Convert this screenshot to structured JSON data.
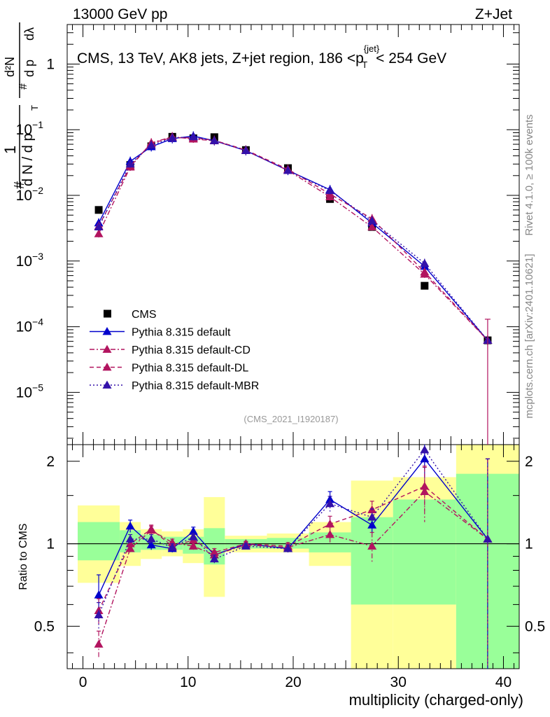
{
  "header": {
    "left": "13000 GeV pp",
    "right": "Z+Jet"
  },
  "side_labels": {
    "rivet": "Rivet 4.1.0, ≥ 100k events",
    "mcplots": "mcplots.cern.ch [arXiv:2401.10621]"
  },
  "chart_data": [
    {
      "type": "line",
      "panel": "main",
      "title": "CMS, 13 TeV, AK8 jets, Z+jet region, 186 <p_T^{jet}< 254 GeV",
      "title_parts": {
        "pre": "CMS, 13 TeV, AK8 jets, Z+jet region, 186 <p",
        "sub": "T",
        "sup": "{jet}",
        "post": "< 254 GeV"
      },
      "ylabel": "1/N dN/dp_T d^2N/dp_T dlambda",
      "ylabel_parts": {
        "hash": "#",
        "one": "1",
        "dn": "d N / d p",
        "T": "T",
        "d2N": "d²N",
        "dp": "d p",
        "dl": "dλ"
      },
      "yscale": "log",
      "ylim": [
        1.6e-06,
        4
      ],
      "yticks": [
        {
          "v": 1e-05,
          "m": "10",
          "e": "−5"
        },
        {
          "v": 0.0001,
          "m": "10",
          "e": "−4"
        },
        {
          "v": 0.001,
          "m": "10",
          "e": "−3"
        },
        {
          "v": 0.01,
          "m": "10",
          "e": "−2"
        },
        {
          "v": 0.1,
          "m": "10",
          "e": "−1"
        },
        {
          "v": 1,
          "m": "1",
          "e": ""
        }
      ],
      "xlim": [
        -1.5,
        41.5
      ],
      "annotation": "(CMS_2021_I1920187)",
      "legend_position": "lower-left",
      "series": [
        {
          "name": "CMS",
          "style": "marker-square",
          "color": "#000000",
          "x": [
            1.5,
            4.5,
            6.5,
            8.5,
            10.5,
            12.5,
            15.5,
            19.5,
            23.5,
            27.5,
            32.5,
            38.5
          ],
          "y": [
            0.006,
            0.029,
            0.056,
            0.078,
            0.074,
            0.077,
            0.049,
            0.026,
            0.0088,
            0.0033,
            0.00042,
            6.2e-05
          ]
        },
        {
          "name": "Pythia 8.315 default",
          "style": "solid",
          "color": "#0000cc",
          "x": [
            1.5,
            4.5,
            6.5,
            8.5,
            10.5,
            12.5,
            15.5,
            19.5,
            23.5,
            27.5,
            32.5,
            38.5
          ],
          "y": [
            0.0038,
            0.033,
            0.055,
            0.073,
            0.08,
            0.068,
            0.048,
            0.024,
            0.0122,
            0.0038,
            0.00083,
            6.2e-05
          ]
        },
        {
          "name": "Pythia 8.315 default-CD",
          "style": "dashdot",
          "color": "#b2145f",
          "x": [
            1.5,
            4.5,
            6.5,
            8.5,
            10.5,
            12.5,
            15.5,
            19.5,
            23.5,
            27.5,
            32.5,
            38.5
          ],
          "y": [
            0.0026,
            0.027,
            0.063,
            0.078,
            0.072,
            0.068,
            0.048,
            0.024,
            0.0095,
            0.0033,
            0.00063,
            6.2e-05
          ]
        },
        {
          "name": "Pythia 8.315 default-DL",
          "style": "dashed",
          "color": "#b2145f",
          "x": [
            1.5,
            4.5,
            6.5,
            8.5,
            10.5,
            12.5,
            15.5,
            19.5,
            23.5,
            27.5,
            32.5,
            38.5
          ],
          "y": [
            0.0034,
            0.028,
            0.062,
            0.076,
            0.075,
            0.069,
            0.049,
            0.025,
            0.0105,
            0.0044,
            0.00068,
            6.2e-05
          ]
        },
        {
          "name": "Pythia 8.315 default-MBR",
          "style": "dotted",
          "color": "#3311aa",
          "x": [
            1.5,
            4.5,
            6.5,
            8.5,
            10.5,
            12.5,
            15.5,
            19.5,
            23.5,
            27.5,
            32.5,
            38.5
          ],
          "y": [
            0.0033,
            0.03,
            0.058,
            0.075,
            0.078,
            0.068,
            0.048,
            0.024,
            0.0118,
            0.0041,
            0.00092,
            6.2e-05
          ]
        }
      ]
    },
    {
      "type": "line",
      "panel": "ratio",
      "ylabel": "Ratio to CMS",
      "xlabel": "multiplicity (charged-only)",
      "xlim": [
        -1.5,
        41.5
      ],
      "xticks": [
        0,
        10,
        20,
        30,
        40
      ],
      "ylim": [
        0.35,
        2.3
      ],
      "yticks": [
        0.5,
        1,
        2
      ],
      "reference_line": 1,
      "bands": {
        "bin_edges": [
          -0.5,
          3.5,
          5.5,
          7.5,
          9.5,
          11.5,
          13.5,
          17.5,
          21.5,
          25.5,
          29.5,
          35.5,
          41.5
        ],
        "inner": [
          [
            0.87,
            1.2
          ],
          [
            0.93,
            1.12
          ],
          [
            0.95,
            1.08
          ],
          [
            0.95,
            1.06
          ],
          [
            0.92,
            1.06
          ],
          [
            0.84,
            1.14
          ],
          [
            0.96,
            1.04
          ],
          [
            0.96,
            1.05
          ],
          [
            0.93,
            1.1
          ],
          [
            0.6,
            1.25
          ],
          [
            0.6,
            1.45
          ],
          [
            0.3,
            1.8
          ]
        ],
        "outer": [
          [
            0.72,
            1.38
          ],
          [
            0.83,
            1.2
          ],
          [
            0.88,
            1.13
          ],
          [
            0.9,
            1.11
          ],
          [
            0.85,
            1.13
          ],
          [
            0.64,
            1.48
          ],
          [
            0.93,
            1.07
          ],
          [
            0.93,
            1.09
          ],
          [
            0.83,
            1.2
          ],
          [
            0.3,
            1.7
          ],
          [
            0.3,
            1.75
          ],
          [
            0.3,
            2.3
          ]
        ]
      },
      "series": [
        {
          "name": "Pythia 8.315 default",
          "style": "solid",
          "color": "#0000cc",
          "x": [
            1.5,
            4.5,
            6.5,
            8.5,
            10.5,
            12.5,
            15.5,
            19.5,
            23.5,
            27.5,
            32.5,
            38.5
          ],
          "y": [
            0.65,
            1.16,
            0.99,
            0.96,
            1.11,
            0.91,
            1.0,
            0.96,
            1.45,
            1.17,
            2.04,
            1.04
          ],
          "err": [
            0.12,
            0.06,
            0.04,
            0.03,
            0.04,
            0.03,
            0.02,
            0.03,
            0.1,
            0.08,
            0.3,
            1.0
          ]
        },
        {
          "name": "Pythia 8.315 default-CD",
          "style": "dashdot",
          "color": "#b2145f",
          "x": [
            1.5,
            4.5,
            6.5,
            8.5,
            10.5,
            12.5,
            15.5,
            19.5,
            23.5,
            27.5,
            32.5,
            38.5
          ],
          "y": [
            0.43,
            0.96,
            1.12,
            1.01,
            0.98,
            0.91,
            0.99,
            0.97,
            1.08,
            0.98,
            1.55,
            1.04
          ],
          "err": [
            0.05,
            0.04,
            0.04,
            0.03,
            0.03,
            0.03,
            0.02,
            0.03,
            0.07,
            0.12,
            0.35,
            1.0
          ]
        },
        {
          "name": "Pythia 8.315 default-DL",
          "style": "dashed",
          "color": "#b2145f",
          "x": [
            1.5,
            4.5,
            6.5,
            8.5,
            10.5,
            12.5,
            15.5,
            19.5,
            23.5,
            27.5,
            32.5,
            38.5
          ],
          "y": [
            0.57,
            1.0,
            1.13,
            0.98,
            1.03,
            0.93,
            1.0,
            0.98,
            1.18,
            1.33,
            1.62,
            1.04
          ],
          "err": [
            0.06,
            0.04,
            0.04,
            0.03,
            0.03,
            0.03,
            0.02,
            0.03,
            0.08,
            0.1,
            0.3,
            1.0
          ]
        },
        {
          "name": "Pythia 8.315 default-MBR",
          "style": "dotted",
          "color": "#3311aa",
          "x": [
            1.5,
            4.5,
            6.5,
            8.5,
            10.5,
            12.5,
            15.5,
            19.5,
            23.5,
            27.5,
            32.5,
            38.5
          ],
          "y": [
            0.55,
            1.04,
            1.04,
            0.97,
            1.06,
            0.88,
            0.98,
            0.96,
            1.4,
            1.25,
            2.2,
            1.04
          ],
          "err": [
            0.06,
            0.04,
            0.04,
            0.03,
            0.03,
            0.03,
            0.02,
            0.03,
            0.09,
            0.09,
            0.35,
            1.0
          ]
        }
      ]
    }
  ]
}
